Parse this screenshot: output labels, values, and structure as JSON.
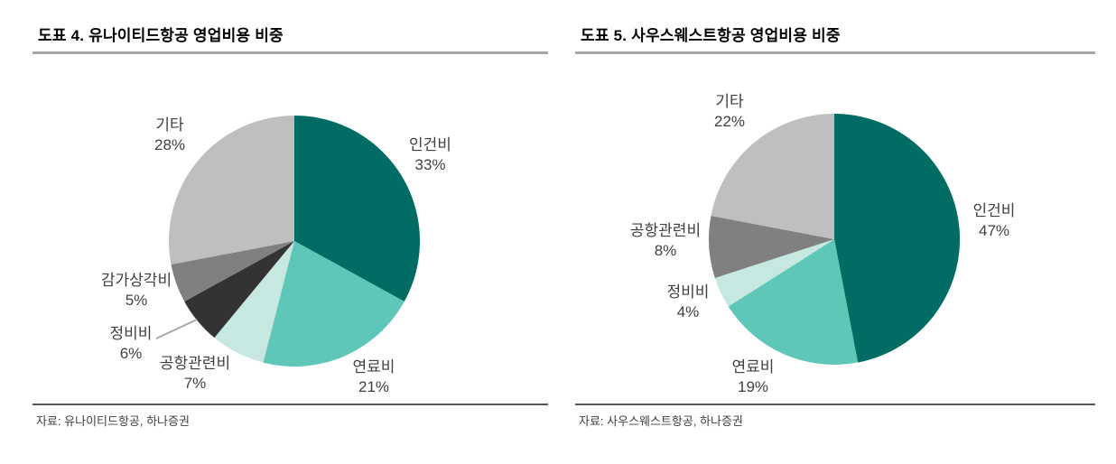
{
  "panels": [
    {
      "title": "도표 4. 유나이티드항공 영업비용 비중",
      "source": "자료: 유나이티드항공, 하나증권"
    },
    {
      "title": "도표 5. 사우스웨스트항공 영업비용 비중",
      "source": "자료: 사우스웨스트항공, 하나증권"
    }
  ],
  "chart_data": [
    {
      "type": "pie",
      "title": "도표 4. 유나이티드항공 영업비용 비중",
      "categories": [
        "인건비",
        "연료비",
        "공항관련비",
        "정비비",
        "감가상각비",
        "기타"
      ],
      "values": [
        33,
        21,
        7,
        6,
        5,
        28
      ],
      "value_labels": [
        "33%",
        "21%",
        "7%",
        "6%",
        "5%",
        "28%"
      ],
      "colors": [
        "#006c64",
        "#5fc7b7",
        "#c7e8e0",
        "#333333",
        "#808080",
        "#bfbfbf"
      ],
      "start_angle_deg": 0,
      "direction": "clockwise",
      "labels_position": "outside",
      "legend": "none",
      "source": "자료: 유나이티드항공, 하나증권"
    },
    {
      "type": "pie",
      "title": "도표 5. 사우스웨스트항공 영업비용 비중",
      "categories": [
        "인건비",
        "연료비",
        "정비비",
        "공항관련비",
        "기타"
      ],
      "values": [
        47,
        19,
        4,
        8,
        22
      ],
      "value_labels": [
        "47%",
        "19%",
        "4%",
        "8%",
        "22%"
      ],
      "colors": [
        "#006c64",
        "#5fc7b7",
        "#c7e8e0",
        "#808080",
        "#bfbfbf"
      ],
      "start_angle_deg": 0,
      "direction": "clockwise",
      "labels_position": "outside",
      "legend": "none",
      "source": "자료: 사우스웨스트항공, 하나증권"
    }
  ]
}
